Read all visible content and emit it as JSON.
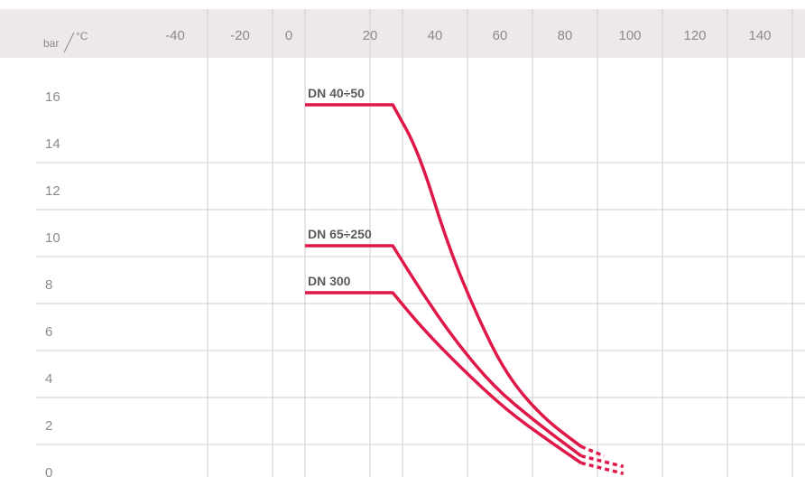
{
  "chart_data": {
    "type": "line",
    "corner_label_y": "bar",
    "corner_label_x": "°C",
    "x_ticks": [
      "-40",
      "-20",
      "0",
      "20",
      "40",
      "60",
      "80",
      "100",
      "120",
      "140"
    ],
    "y_ticks": [
      "16",
      "14",
      "12",
      "10",
      "8",
      "6",
      "4",
      "2",
      "0"
    ],
    "xlim": [
      -50,
      155
    ],
    "ylim": [
      0,
      16
    ],
    "grid": true,
    "line_color": "#e0184a",
    "header_color": "#ece9e8",
    "series": [
      {
        "name": "DN 40÷50",
        "points": [
          [
            0,
            16
          ],
          [
            27,
            16
          ],
          [
            35,
            14
          ],
          [
            44,
            10
          ],
          [
            53,
            7
          ],
          [
            62,
            4.5
          ],
          [
            73,
            2.7
          ],
          [
            85,
            1.45
          ]
        ],
        "dashed_points": [
          [
            85,
            1.45
          ],
          [
            92,
            1.05
          ]
        ]
      },
      {
        "name": "DN 65÷250",
        "points": [
          [
            0,
            10
          ],
          [
            27,
            10
          ],
          [
            36,
            8
          ],
          [
            46,
            6
          ],
          [
            58,
            4
          ],
          [
            71,
            2.5
          ],
          [
            85,
            1.05
          ]
        ],
        "dashed_points": [
          [
            85,
            1.05
          ],
          [
            98,
            0.6
          ]
        ]
      },
      {
        "name": "DN 300",
        "points": [
          [
            0,
            8
          ],
          [
            27,
            8
          ],
          [
            36,
            6.5
          ],
          [
            48,
            4.8
          ],
          [
            62,
            3
          ],
          [
            75,
            1.7
          ],
          [
            85,
            0.75
          ]
        ],
        "dashed_points": [
          [
            85,
            0.75
          ],
          [
            98,
            0.3
          ]
        ]
      }
    ]
  }
}
